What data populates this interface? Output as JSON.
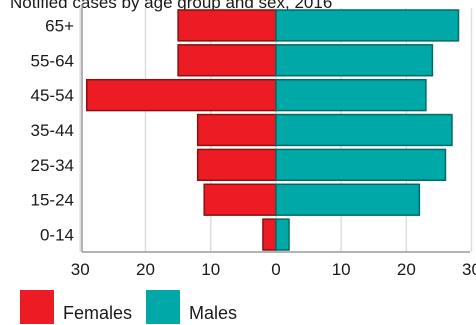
{
  "chart_data": {
    "type": "bar",
    "orientation": "horizontal",
    "layout": "population-pyramid",
    "title": "Notified cases by age group and sex, 2016",
    "xlabel": "",
    "ylabel": "",
    "categories": [
      "65+",
      "55-64",
      "45-54",
      "35-44",
      "25-34",
      "15-24",
      "0-14"
    ],
    "x_ticks": [
      30,
      20,
      10,
      0,
      10,
      20,
      30
    ],
    "x_range": [
      -30,
      30
    ],
    "grid": true,
    "legend_position": "bottom-left",
    "series": [
      {
        "name": "Females",
        "color": "#ed1c24",
        "side": "left",
        "values": [
          15,
          15,
          29,
          12,
          12,
          11,
          2
        ]
      },
      {
        "name": "Males",
        "color": "#00a9a7",
        "side": "right",
        "values": [
          28,
          24,
          23,
          27,
          26,
          22,
          2
        ]
      }
    ],
    "colors": {
      "grid": "#dddddd",
      "axis": "#9a9a9a",
      "bar_edge": "#8a1010",
      "bar_edge_male": "#006b69"
    }
  }
}
